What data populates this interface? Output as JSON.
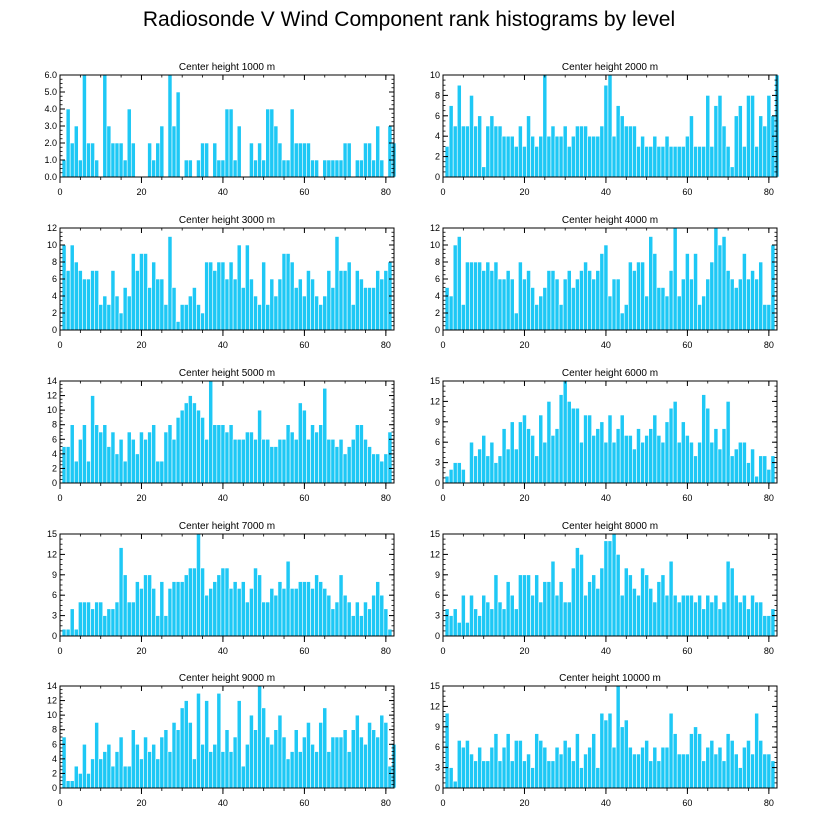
{
  "title": "Radiosonde V Wind Component rank histograms by level",
  "colors": {
    "bar": "#1ec8f5",
    "bar_edge": "#ffffff",
    "axis": "#000000"
  },
  "chart_data": [
    {
      "type": "bar",
      "title": "Center height 1000 m",
      "xlim": [
        0,
        82
      ],
      "ylim": [
        0,
        6
      ],
      "xticks": [
        0,
        20,
        40,
        60,
        80
      ],
      "yticks": [
        0,
        1,
        2,
        3,
        4,
        5,
        6
      ],
      "ytick_labels": [
        "0.0",
        "1.0",
        "2.0",
        "3.0",
        "4.0",
        "5.0",
        "6.0"
      ],
      "values": [
        1,
        4,
        2,
        3,
        1,
        6,
        2,
        2,
        1,
        0,
        6,
        3,
        2,
        2,
        2,
        1,
        4,
        2,
        0,
        0,
        0,
        2,
        1,
        2,
        3,
        0,
        6,
        3,
        5,
        0,
        1,
        1,
        0,
        1,
        2,
        2,
        0,
        2,
        1,
        1,
        4,
        4,
        1,
        3,
        0,
        0,
        2,
        1,
        2,
        1,
        4,
        4,
        3,
        2,
        1,
        1,
        4,
        2,
        2,
        2,
        2,
        1,
        1,
        0,
        1,
        1,
        1,
        1,
        1,
        2,
        2,
        0,
        1,
        1,
        2,
        2,
        1,
        3,
        1,
        0,
        3,
        2
      ]
    },
    {
      "type": "bar",
      "title": "Center height 2000 m",
      "xlim": [
        0,
        82
      ],
      "ylim": [
        0,
        10
      ],
      "xticks": [
        0,
        20,
        40,
        60,
        80
      ],
      "yticks": [
        0,
        2,
        4,
        6,
        8,
        10
      ],
      "ytick_labels": [
        "0",
        "2",
        "4",
        "6",
        "8",
        "10"
      ],
      "values": [
        3,
        7,
        5,
        9,
        5,
        5,
        8,
        5,
        6,
        1,
        5,
        6,
        5,
        5,
        4,
        4,
        4,
        3,
        5,
        3,
        6,
        4,
        3,
        4,
        10,
        4,
        5,
        4,
        4,
        5,
        3,
        4,
        5,
        5,
        5,
        4,
        4,
        4,
        5,
        9,
        10,
        4,
        7,
        6,
        5,
        5,
        5,
        3,
        4,
        3,
        3,
        4,
        3,
        3,
        4,
        3,
        3,
        3,
        3,
        4,
        6,
        3,
        3,
        3,
        8,
        3,
        7,
        8,
        5,
        3,
        1,
        6,
        7,
        3,
        8,
        8,
        3,
        6,
        5,
        8,
        6,
        10
      ]
    },
    {
      "type": "bar",
      "title": "Center height 3000 m",
      "xlim": [
        0,
        82
      ],
      "ylim": [
        0,
        12
      ],
      "xticks": [
        0,
        20,
        40,
        60,
        80
      ],
      "yticks": [
        0,
        2,
        4,
        6,
        8,
        10,
        12
      ],
      "ytick_labels": [
        "0",
        "2",
        "4",
        "6",
        "8",
        "10",
        "12"
      ],
      "values": [
        10,
        7,
        10,
        8,
        7,
        6,
        6,
        7,
        7,
        3,
        4,
        3,
        7,
        4,
        2,
        5,
        4,
        9,
        7,
        9,
        9,
        5,
        8,
        6,
        6,
        3,
        11,
        5,
        1,
        3,
        3,
        4,
        5,
        3,
        2,
        8,
        8,
        7,
        8,
        8,
        6,
        8,
        6,
        10,
        5,
        10,
        6,
        4,
        3,
        8,
        3,
        6,
        4,
        6,
        9,
        9,
        8,
        5,
        6,
        4,
        7,
        6,
        4,
        3,
        4,
        7,
        5,
        11,
        7,
        7,
        8,
        3,
        7,
        6,
        5,
        5,
        5,
        7,
        6,
        7,
        8
      ]
    },
    {
      "type": "bar",
      "title": "Center height 4000 m",
      "xlim": [
        0,
        82
      ],
      "ylim": [
        0,
        12
      ],
      "xticks": [
        0,
        20,
        40,
        60,
        80
      ],
      "yticks": [
        0,
        2,
        4,
        6,
        8,
        10,
        12
      ],
      "ytick_labels": [
        "0",
        "2",
        "4",
        "6",
        "8",
        "10",
        "12"
      ],
      "values": [
        5,
        4,
        10,
        11,
        3,
        8,
        8,
        8,
        8,
        7,
        8,
        7,
        8,
        6,
        6,
        7,
        6,
        2,
        8,
        6,
        7,
        5,
        3,
        4,
        5,
        7,
        7,
        6,
        3,
        6,
        7,
        5,
        6,
        7,
        8,
        7,
        6,
        7,
        9,
        10,
        4,
        6,
        6,
        2,
        3,
        8,
        7,
        8,
        8,
        4,
        11,
        9,
        5,
        5,
        4,
        7,
        12,
        4,
        6,
        9,
        6,
        9,
        3,
        4,
        6,
        8,
        12,
        10,
        11,
        7,
        6,
        5,
        6,
        9,
        6,
        7,
        6,
        8,
        3,
        3,
        10
      ]
    },
    {
      "type": "bar",
      "title": "Center height 5000 m",
      "xlim": [
        0,
        82
      ],
      "ylim": [
        0,
        14
      ],
      "xticks": [
        0,
        20,
        40,
        60,
        80
      ],
      "yticks": [
        0,
        2,
        4,
        6,
        8,
        10,
        12,
        14
      ],
      "ytick_labels": [
        "0",
        "2",
        "4",
        "6",
        "8",
        "10",
        "12",
        "14"
      ],
      "values": [
        5,
        5,
        8,
        3,
        6,
        8,
        3,
        12,
        8,
        7,
        8,
        5,
        7,
        4,
        6,
        3,
        7,
        6,
        4,
        7,
        6,
        7,
        8,
        3,
        3,
        7,
        8,
        6,
        9,
        10,
        11,
        12,
        11,
        10,
        9,
        6,
        14,
        8,
        8,
        8,
        7,
        8,
        6,
        6,
        6,
        7,
        7,
        6,
        10,
        6,
        6,
        5,
        5,
        6,
        6,
        8,
        7,
        6,
        11,
        10,
        6,
        8,
        7,
        8,
        13,
        6,
        6,
        5,
        6,
        4,
        5,
        6,
        8,
        8,
        6,
        5,
        4,
        4,
        3,
        4,
        7
      ]
    },
    {
      "type": "bar",
      "title": "Center height 6000 m",
      "xlim": [
        0,
        82
      ],
      "ylim": [
        0,
        15
      ],
      "xticks": [
        0,
        20,
        40,
        60,
        80
      ],
      "yticks": [
        0,
        3,
        6,
        9,
        12,
        15
      ],
      "ytick_labels": [
        "0",
        "3",
        "6",
        "9",
        "12",
        "15"
      ],
      "values": [
        1,
        2,
        3,
        3,
        2,
        0,
        6,
        4,
        5,
        7,
        4,
        6,
        3,
        4,
        8,
        5,
        9,
        5,
        9,
        10,
        8,
        7,
        4,
        10,
        6,
        12,
        7,
        8,
        13,
        15,
        12,
        11,
        11,
        6,
        10,
        10,
        7,
        8,
        9,
        6,
        10,
        6,
        8,
        10,
        7,
        7,
        5,
        8,
        6,
        7,
        8,
        10,
        7,
        6,
        9,
        11,
        12,
        6,
        9,
        7,
        6,
        4,
        6,
        13,
        11,
        6,
        8,
        5,
        8,
        12,
        4,
        5,
        6,
        6,
        3,
        5,
        1,
        4,
        4,
        2,
        4
      ]
    },
    {
      "type": "bar",
      "title": "Center height 7000 m",
      "xlim": [
        0,
        82
      ],
      "ylim": [
        0,
        15
      ],
      "xticks": [
        0,
        20,
        40,
        60,
        80
      ],
      "yticks": [
        0,
        3,
        6,
        9,
        12,
        15
      ],
      "ytick_labels": [
        "0",
        "3",
        "6",
        "9",
        "12",
        "15"
      ],
      "values": [
        1,
        1,
        4,
        1,
        5,
        5,
        5,
        4,
        5,
        5,
        3,
        4,
        4,
        5,
        13,
        9,
        5,
        5,
        8,
        7,
        9,
        9,
        7,
        3,
        8,
        3,
        7,
        8,
        8,
        8,
        9,
        10,
        10,
        15,
        10,
        6,
        7,
        8,
        9,
        10,
        10,
        7,
        8,
        7,
        8,
        5,
        7,
        10,
        9,
        5,
        5,
        7,
        6,
        8,
        7,
        11,
        7,
        7,
        8,
        8,
        8,
        7,
        9,
        8,
        7,
        6,
        4,
        5,
        9,
        6,
        5,
        3,
        5,
        3,
        5,
        4,
        6,
        8,
        6,
        4,
        1
      ]
    },
    {
      "type": "bar",
      "title": "Center height 8000 m",
      "xlim": [
        0,
        82
      ],
      "ylim": [
        0,
        15
      ],
      "xticks": [
        0,
        20,
        40,
        60,
        80
      ],
      "yticks": [
        0,
        3,
        6,
        9,
        12,
        15
      ],
      "ytick_labels": [
        "0",
        "3",
        "6",
        "9",
        "12",
        "15"
      ],
      "values": [
        4,
        3,
        4,
        2,
        6,
        2,
        6,
        4,
        3,
        6,
        5,
        4,
        9,
        5,
        4,
        8,
        6,
        4,
        9,
        9,
        9,
        6,
        9,
        5,
        8,
        8,
        11,
        6,
        8,
        5,
        5,
        10,
        13,
        12,
        6,
        8,
        9,
        7,
        10,
        14,
        14,
        15,
        12,
        6,
        10,
        9,
        7,
        6,
        10,
        9,
        7,
        5,
        8,
        9,
        6,
        11,
        6,
        5,
        6,
        6,
        6,
        5,
        6,
        4,
        6,
        5,
        6,
        4,
        5,
        11,
        10,
        6,
        5,
        6,
        4,
        6,
        5,
        5,
        3,
        3,
        4
      ]
    },
    {
      "type": "bar",
      "title": "Center height 9000 m",
      "xlim": [
        0,
        82
      ],
      "ylim": [
        0,
        14
      ],
      "xticks": [
        0,
        20,
        40,
        60,
        80
      ],
      "yticks": [
        0,
        2,
        4,
        6,
        8,
        10,
        12,
        14
      ],
      "ytick_labels": [
        "0",
        "2",
        "4",
        "6",
        "8",
        "10",
        "12",
        "14"
      ],
      "values": [
        7,
        1,
        1,
        3,
        2,
        6,
        2,
        4,
        9,
        4,
        5,
        6,
        3,
        5,
        7,
        3,
        3,
        8,
        6,
        4,
        7,
        5,
        6,
        4,
        7,
        8,
        5,
        9,
        8,
        11,
        12,
        9,
        4,
        13,
        6,
        12,
        5,
        6,
        13,
        5,
        8,
        5,
        7,
        12,
        3,
        6,
        10,
        8,
        14,
        11,
        7,
        6,
        8,
        10,
        7,
        4,
        5,
        8,
        5,
        7,
        9,
        6,
        5,
        9,
        11,
        5,
        7,
        7,
        7,
        8,
        5,
        8,
        10,
        7,
        6,
        9,
        8,
        7,
        10,
        9,
        3,
        6
      ]
    },
    {
      "type": "bar",
      "title": "Center height 10000 m",
      "xlim": [
        0,
        82
      ],
      "ylim": [
        0,
        15
      ],
      "xticks": [
        0,
        20,
        40,
        60,
        80
      ],
      "yticks": [
        0,
        3,
        6,
        9,
        12,
        15
      ],
      "ytick_labels": [
        "0",
        "3",
        "6",
        "9",
        "12",
        "15"
      ],
      "values": [
        11,
        3,
        1,
        7,
        6,
        7,
        5,
        4,
        6,
        4,
        4,
        6,
        8,
        4,
        6,
        8,
        4,
        7,
        7,
        4,
        5,
        3,
        8,
        7,
        6,
        4,
        4,
        6,
        5,
        7,
        6,
        4,
        8,
        3,
        5,
        6,
        8,
        3,
        11,
        10,
        11,
        6,
        15,
        9,
        10,
        6,
        5,
        5,
        6,
        7,
        4,
        6,
        4,
        6,
        6,
        11,
        8,
        5,
        5,
        5,
        8,
        9,
        8,
        4,
        6,
        7,
        5,
        6,
        4,
        8,
        7,
        5,
        3,
        6,
        7,
        5,
        11,
        7,
        5,
        5,
        4
      ]
    }
  ]
}
